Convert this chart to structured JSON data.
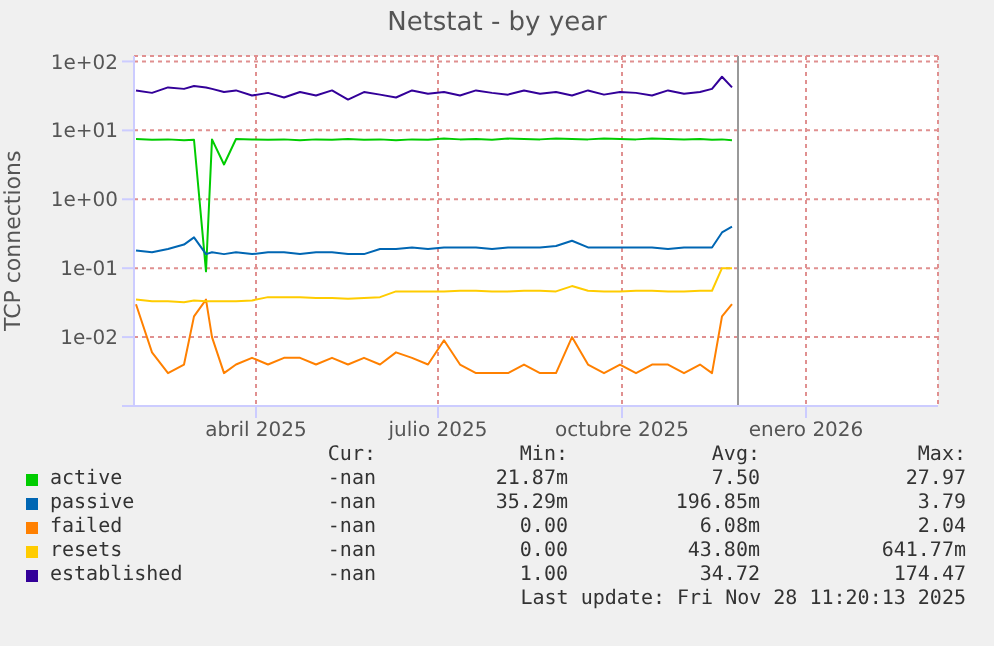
{
  "chart_data": {
    "type": "line",
    "title": "Netstat - by year",
    "ylabel": "TCP connections",
    "log": "y",
    "grid": true,
    "legend": "bottom left",
    "marker": "none",
    "line_style": "solid",
    "x": [
      "2025-01-31",
      "2025-02-08",
      "2025-02-16",
      "2025-02-24",
      "2025-03-01",
      "2025-03-07",
      "2025-03-10",
      "2025-03-16",
      "2025-03-22",
      "2025-03-30",
      "2025-04-07",
      "2025-04-15",
      "2025-04-23",
      "2025-05-01",
      "2025-05-09",
      "2025-05-17",
      "2025-05-25",
      "2025-06-02",
      "2025-06-10",
      "2025-06-18",
      "2025-06-26",
      "2025-07-04",
      "2025-07-12",
      "2025-07-20",
      "2025-07-28",
      "2025-08-05",
      "2025-08-13",
      "2025-08-21",
      "2025-08-29",
      "2025-09-06",
      "2025-09-14",
      "2025-09-22",
      "2025-09-30",
      "2025-10-08",
      "2025-10-16",
      "2025-10-24",
      "2025-11-01",
      "2025-11-09",
      "2025-11-15",
      "2025-11-20",
      "2025-11-25"
    ],
    "xlim": [
      "2025-01-30",
      "2026-03-08"
    ],
    "xticks": [
      {
        "value": "2025-04-01",
        "label": "abril 2025"
      },
      {
        "value": "2025-07-01",
        "label": "julio 2025"
      },
      {
        "value": "2025-10-01",
        "label": "octubre 2025"
      },
      {
        "value": "2026-01-01",
        "label": "enero 2026"
      }
    ],
    "ylim": [
      0.001,
      120
    ],
    "yticks": [
      {
        "value": 0.001,
        "label": null
      },
      {
        "value": 0.01,
        "label": "1e-02"
      },
      {
        "value": 0.1,
        "label": "1e-01"
      },
      {
        "value": 1,
        "label": "1e+00"
      },
      {
        "value": 10,
        "label": "1e+01"
      },
      {
        "value": 100,
        "label": "1e+02"
      }
    ],
    "ref_lines": [
      {
        "axis": "x",
        "value": "2025-11-28",
        "color": "#999999"
      }
    ],
    "series": [
      {
        "name": "active",
        "color": "#00cc00",
        "values": [
          7.5,
          7.3,
          7.4,
          7.2,
          7.3,
          0.09,
          7.4,
          3.2,
          7.5,
          7.4,
          7.3,
          7.4,
          7.2,
          7.4,
          7.3,
          7.5,
          7.3,
          7.4,
          7.2,
          7.4,
          7.3,
          7.6,
          7.4,
          7.5,
          7.3,
          7.6,
          7.5,
          7.4,
          7.6,
          7.5,
          7.4,
          7.6,
          7.5,
          7.4,
          7.6,
          7.5,
          7.4,
          7.5,
          7.3,
          7.4,
          7.2
        ]
      },
      {
        "name": "passive",
        "color": "#0066b3",
        "values": [
          0.18,
          0.17,
          0.19,
          0.22,
          0.28,
          0.16,
          0.17,
          0.16,
          0.17,
          0.16,
          0.17,
          0.17,
          0.16,
          0.17,
          0.17,
          0.16,
          0.16,
          0.19,
          0.19,
          0.2,
          0.19,
          0.2,
          0.2,
          0.2,
          0.19,
          0.2,
          0.2,
          0.2,
          0.21,
          0.25,
          0.2,
          0.2,
          0.2,
          0.2,
          0.2,
          0.19,
          0.2,
          0.2,
          0.2,
          0.33,
          0.4
        ]
      },
      {
        "name": "failed",
        "color": "#ff8000",
        "values": [
          0.03,
          0.006,
          0.003,
          0.004,
          0.02,
          0.035,
          0.01,
          0.003,
          0.004,
          0.005,
          0.004,
          0.005,
          0.005,
          0.004,
          0.005,
          0.004,
          0.005,
          0.004,
          0.006,
          0.005,
          0.004,
          0.009,
          0.004,
          0.003,
          0.003,
          0.003,
          0.004,
          0.003,
          0.003,
          0.01,
          0.004,
          0.003,
          0.004,
          0.003,
          0.004,
          0.004,
          0.003,
          0.004,
          0.003,
          0.02,
          0.03
        ]
      },
      {
        "name": "resets",
        "color": "#ffcc00",
        "values": [
          0.035,
          0.033,
          0.033,
          0.032,
          0.034,
          0.033,
          0.033,
          0.033,
          0.033,
          0.034,
          0.038,
          0.038,
          0.038,
          0.037,
          0.037,
          0.036,
          0.037,
          0.038,
          0.046,
          0.046,
          0.046,
          0.046,
          0.047,
          0.047,
          0.046,
          0.046,
          0.047,
          0.047,
          0.046,
          0.055,
          0.047,
          0.046,
          0.046,
          0.047,
          0.047,
          0.046,
          0.046,
          0.047,
          0.047,
          0.1,
          0.1
        ]
      },
      {
        "name": "established",
        "color": "#330099",
        "values": [
          38,
          35,
          42,
          40,
          44,
          42,
          40,
          36,
          38,
          32,
          35,
          30,
          36,
          32,
          38,
          28,
          36,
          33,
          30,
          38,
          34,
          36,
          32,
          38,
          35,
          33,
          38,
          34,
          36,
          32,
          38,
          33,
          36,
          35,
          32,
          38,
          34,
          36,
          40,
          60,
          42
        ]
      }
    ],
    "annotations": [
      "Cur:",
      "Min:",
      "Avg:",
      "Max:",
      "-nan",
      "21.87m",
      "7.50",
      "27.97",
      "-nan",
      "35.29m",
      "196.85m",
      "3.79",
      "-nan",
      "0.00",
      "6.08m",
      "2.04",
      "-nan",
      "0.00",
      "43.80m",
      "641.77m",
      "-nan",
      "1.00",
      "34.72",
      "174.47",
      "Last update: Fri Nov 28 11:20:13 2025"
    ]
  }
}
